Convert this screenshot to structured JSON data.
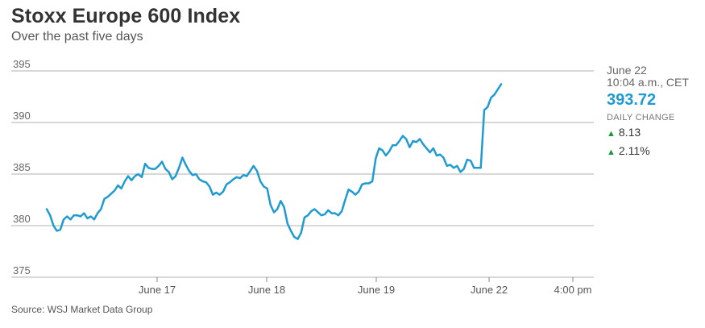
{
  "header": {
    "title": "Stoxx Europe 600 Index",
    "subtitle": "Over the past five days"
  },
  "source": "Source: WSJ Market Data Group",
  "latest": {
    "date": "June 22",
    "time": "10:04 a.m., CET",
    "price": "393.72",
    "daily_change_label": "DAILY CHANGE",
    "change_points": "8.13",
    "change_percent": "2.11%"
  },
  "colors": {
    "line": "#1f9bd1",
    "up": "#1a9a3a",
    "grid": "#999999"
  },
  "chart_data": {
    "type": "line",
    "title": "Stoxx Europe 600 Index",
    "subtitle": "Over the past five days",
    "ylim": [
      375,
      395
    ],
    "yticks": [
      395,
      390,
      385,
      380,
      375
    ],
    "x_tick_labels": [
      "June 17",
      "June 18",
      "June 19",
      "June 22",
      "4:00 pm"
    ],
    "grid": true,
    "series": [
      {
        "values": [
          381.6,
          381.0,
          380.0,
          379.5,
          379.6,
          380.6,
          380.9,
          380.6,
          381.0,
          381.0,
          380.9,
          381.2,
          380.7,
          380.9,
          380.6,
          381.2,
          381.6,
          382.6,
          382.8,
          383.1,
          383.4,
          383.9,
          383.6,
          384.3,
          384.8,
          384.4,
          384.8,
          385.0,
          384.7,
          386.0,
          385.6,
          385.5,
          385.5,
          385.8,
          386.2,
          385.5,
          385.2,
          384.5,
          384.8,
          385.6,
          386.6,
          385.9,
          385.3,
          384.9,
          385.0,
          384.5,
          384.3,
          384.2,
          383.8,
          383.0,
          383.2,
          383.0,
          383.3,
          384.0,
          384.2,
          384.5,
          384.7,
          384.6,
          384.9,
          384.8,
          385.3,
          385.8,
          385.3,
          384.3,
          383.8,
          383.6,
          382.0,
          381.3,
          381.6,
          382.4,
          381.8,
          380.2,
          379.5,
          378.9,
          378.7,
          379.3,
          380.8,
          381.0,
          381.4,
          381.6,
          381.3,
          381.0,
          381.1,
          381.5,
          381.2,
          381.2,
          381.0,
          381.4,
          382.5,
          383.5,
          383.3,
          383.0,
          383.3,
          384.0,
          384.1,
          384.1,
          384.3,
          386.5,
          387.5,
          387.3,
          386.8,
          387.2,
          387.8,
          387.8,
          388.2,
          388.7,
          388.4,
          387.6,
          388.2,
          388.1,
          388.4,
          387.9,
          387.5,
          387.1,
          387.5,
          386.8,
          386.9,
          386.6,
          385.8,
          385.9,
          385.6,
          385.8,
          385.2,
          385.5,
          386.4,
          386.3,
          385.6,
          385.6,
          385.6,
          391.2,
          391.5,
          392.4,
          392.7,
          393.2,
          393.72
        ]
      }
    ]
  }
}
